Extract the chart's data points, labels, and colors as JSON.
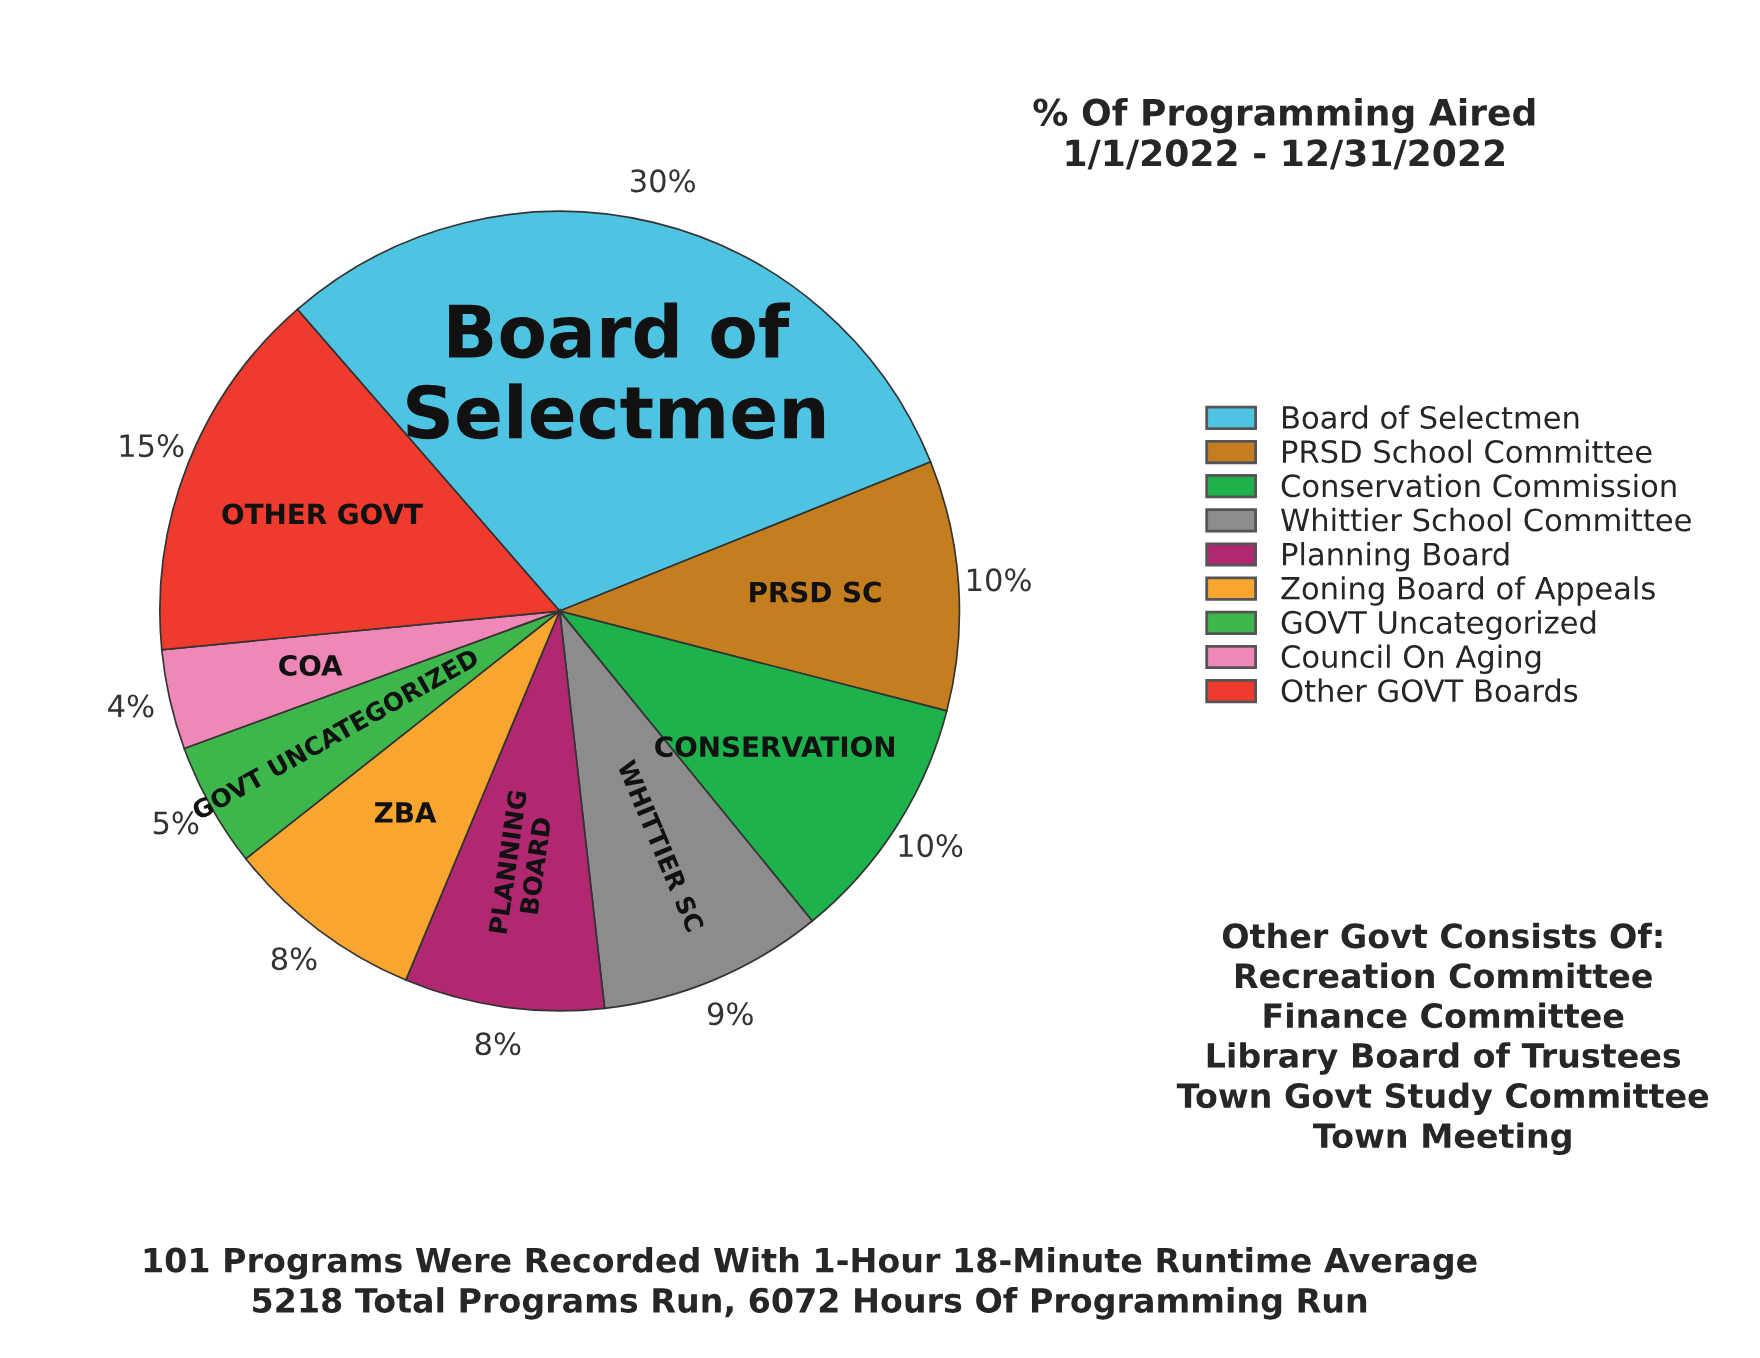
{
  "chart_data": {
    "type": "pie",
    "title": "% Of Programming Aired\n1/1/2022 - 12/31/2022",
    "categories": [
      "Board of Selectmen",
      "PRSD School Committee",
      "Conservation Commission",
      "Whittier School Committee",
      "Planning Board",
      "Zoning Board of Appeals",
      "GOVT Uncategorized",
      "Council On Aging",
      "Other GOVT Boards"
    ],
    "values": [
      30,
      10,
      10,
      9,
      8,
      8,
      5,
      4,
      15
    ],
    "value_labels": [
      "30%",
      "10%",
      "10%",
      "9%",
      "8%",
      "8%",
      "5%",
      "4%",
      "15%"
    ],
    "colors": [
      "#4fc4e2",
      "#c47d1f",
      "#1db24b",
      "#8c8c8c",
      "#b0286f",
      "#f8a630",
      "#3db64c",
      "#ef88b6",
      "#ee3b2e"
    ],
    "legend": "right",
    "annotations": [
      {
        "text": "Board of\nSelectmen",
        "x": "Board of Selectmen"
      },
      {
        "text": "PRSD SC",
        "x": "PRSD School Committee"
      },
      {
        "text": "CONSERVATION",
        "x": "Conservation Commission"
      },
      {
        "text": "WHITTIER SC",
        "x": "Whittier School Committee"
      },
      {
        "text": "PLANNING\nBOARD",
        "x": "Planning Board"
      },
      {
        "text": "ZBA",
        "x": "Zoning Board of Appeals"
      },
      {
        "text": "GOVT UNCATEGORIZED",
        "x": "GOVT Uncategorized"
      },
      {
        "text": "COA",
        "x": "Council On Aging"
      },
      {
        "text": "OTHER GOVT",
        "x": "Other GOVT Boards"
      },
      "Other Govt Consists Of:\nRecreation Committee\nFinance Committee\nLibrary Board of Trustees\nTown Govt Study Committee\nTown Meeting",
      "101 Programs Were Recorded With 1-Hour 18-Minute Runtime Average\n5218 Total Programs Run, 6072 Hours Of Programming Run"
    ]
  }
}
